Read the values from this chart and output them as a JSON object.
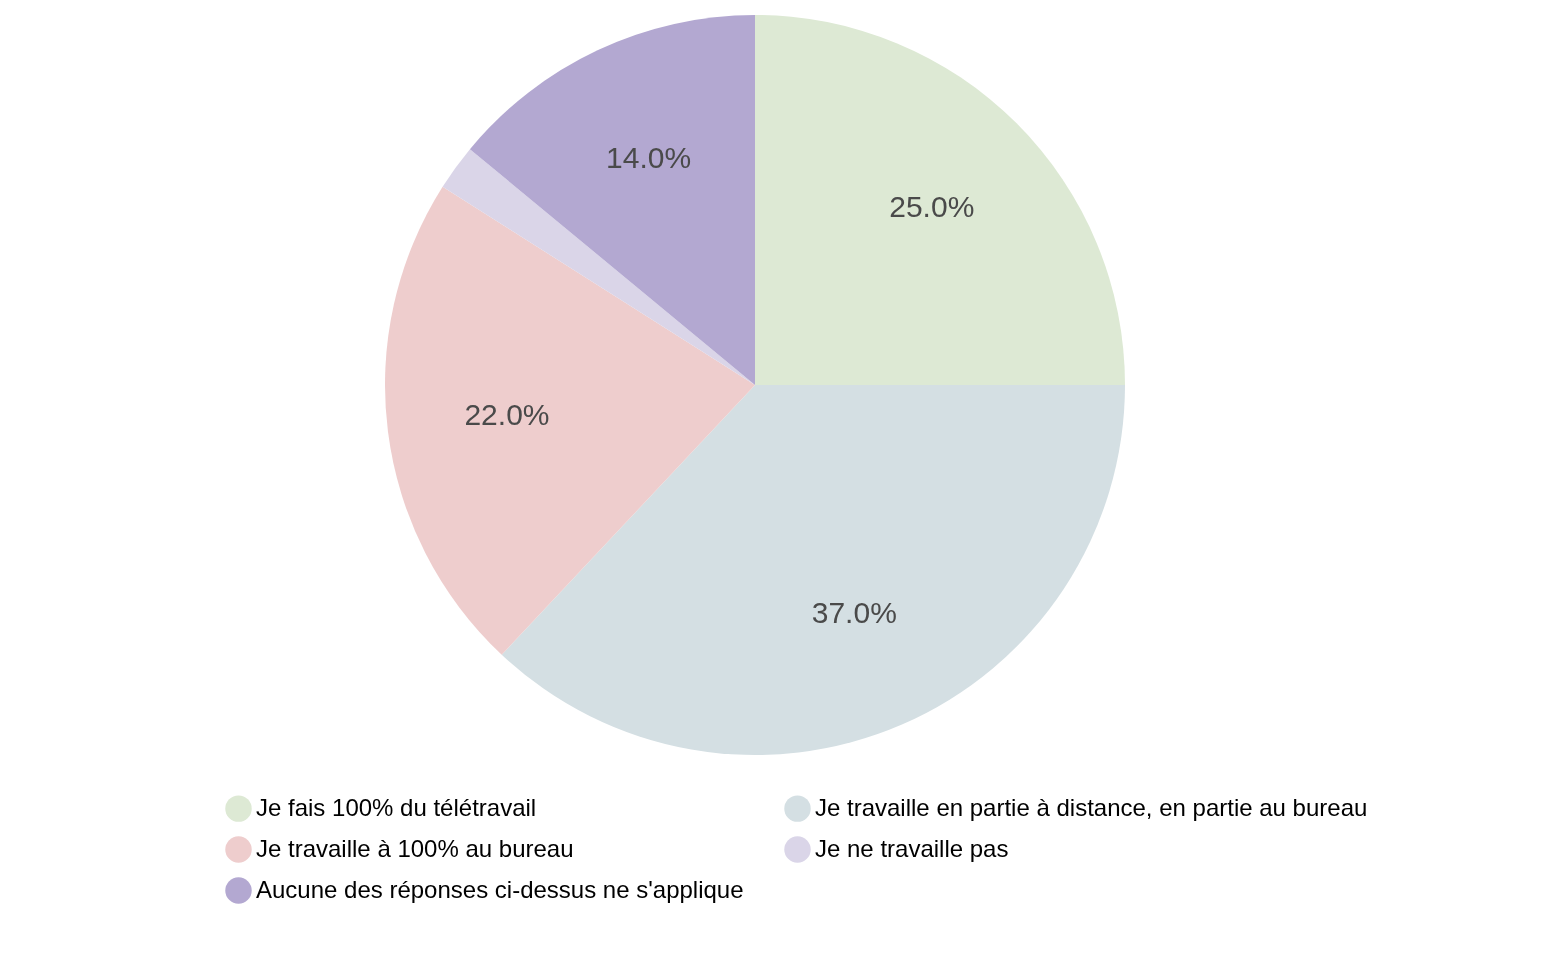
{
  "chart_data": {
    "type": "pie",
    "categories": [
      "Je fais 100% du télétravail",
      "Je travaille en partie à distance, en partie au bureau",
      "Je travaille à 100% au bureau",
      "Je ne travaille pas",
      "Aucune des réponses ci-dessus ne s'applique"
    ],
    "values": [
      25,
      37,
      22,
      2,
      14
    ],
    "colors": [
      "#dde9d4",
      "#d4dfe3",
      "#eecdcd",
      "#dad5e8",
      "#b3a8d1"
    ],
    "value_labels": [
      "25.0%",
      "37.0%",
      "22.0%",
      null,
      "14.0%"
    ],
    "legend": "bottom"
  }
}
